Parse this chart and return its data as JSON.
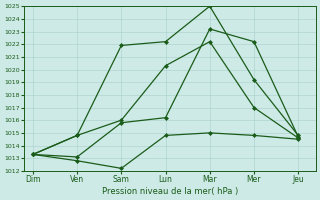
{
  "x_labels": [
    "Dim",
    "Ven",
    "Sam",
    "Lun",
    "Mar",
    "Mer",
    "Jeu"
  ],
  "x_ticks": [
    0,
    1,
    2,
    3,
    4,
    5,
    6
  ],
  "line1": [
    1013.3,
    1012.8,
    1012.2,
    1014.8,
    1015.0,
    1014.8,
    1014.5
  ],
  "line2": [
    1013.3,
    1014.8,
    1021.9,
    1022.2,
    1025.0,
    1019.2,
    1014.8
  ],
  "line3": [
    1013.3,
    1014.8,
    1016.0,
    1020.3,
    1022.2,
    1017.0,
    1014.6
  ],
  "line4": [
    1013.3,
    1013.1,
    1015.8,
    1016.2,
    1023.2,
    1022.2,
    1014.7
  ],
  "ylim": [
    1012,
    1025
  ],
  "yticks": [
    1012,
    1013,
    1014,
    1015,
    1016,
    1017,
    1018,
    1019,
    1020,
    1021,
    1022,
    1023,
    1024,
    1025
  ],
  "line_color": "#1a5c1a",
  "bg_color": "#ceeae6",
  "grid_color": "#aad0cc",
  "xlabel": "Pression niveau de la mer( hPa )",
  "marker": "D",
  "marker_size": 2.0,
  "line_width": 0.9
}
